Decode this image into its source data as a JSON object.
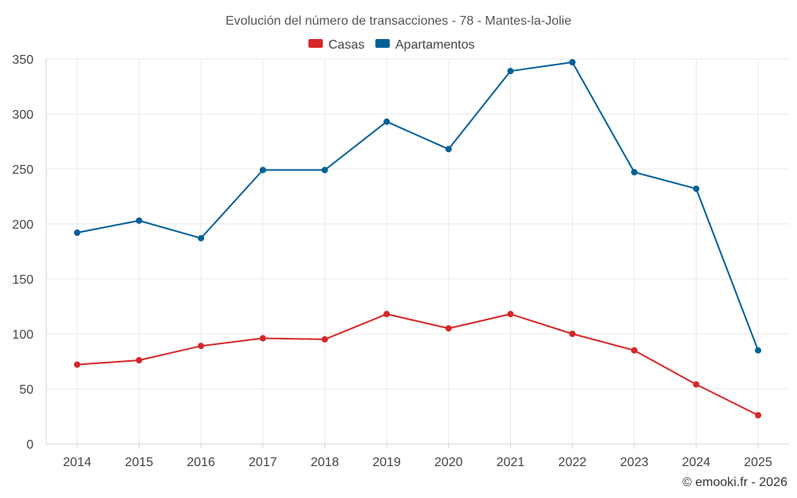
{
  "chart_data": {
    "type": "line",
    "title": "Evolución del número de transacciones - 78 - Mantes-la-Jolie",
    "categories": [
      "2014",
      "2015",
      "2016",
      "2017",
      "2018",
      "2019",
      "2020",
      "2021",
      "2022",
      "2023",
      "2024",
      "2025"
    ],
    "series": [
      {
        "name": "Casas",
        "color": "#d62728",
        "values": [
          72,
          76,
          89,
          96,
          95,
          118,
          105,
          118,
          100,
          85,
          54,
          26
        ]
      },
      {
        "name": "Apartamentos",
        "color": "#005f99",
        "values": [
          192,
          203,
          187,
          249,
          249,
          293,
          268,
          339,
          347,
          247,
          232,
          85
        ]
      }
    ],
    "y_ticks": [
      "0",
      "50",
      "100",
      "150",
      "200",
      "250",
      "300",
      "350"
    ],
    "ylim": [
      0,
      350
    ],
    "grid": true,
    "legend_position": "top-center",
    "xlabel": "",
    "ylabel": ""
  },
  "credit": "© emooki.fr - 2026"
}
